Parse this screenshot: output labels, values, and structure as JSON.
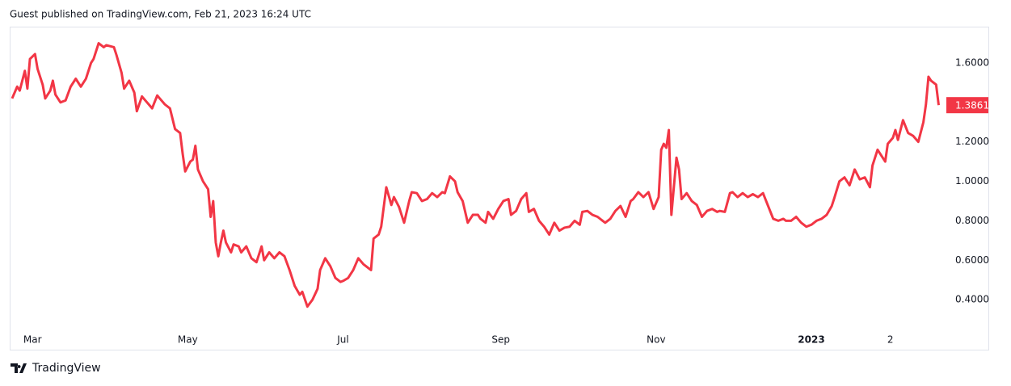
{
  "header": {
    "text": "Guest published on TradingView.com, Feb 21, 2023 16:24 UTC"
  },
  "footer": {
    "brand": "TradingView"
  },
  "chart_data": {
    "type": "line",
    "x": [
      0,
      2,
      3,
      5,
      6,
      7,
      9,
      10,
      12,
      13,
      15,
      16,
      17,
      19,
      21,
      23,
      25,
      27,
      29,
      31,
      32,
      34,
      36,
      37,
      40,
      41,
      43,
      44,
      46,
      48,
      49,
      51,
      53,
      55,
      57,
      58,
      60,
      62,
      64,
      66,
      67,
      68,
      70,
      71,
      72,
      73,
      75,
      77,
      78,
      79,
      80,
      81,
      82,
      83,
      84,
      86,
      87,
      89,
      90,
      92,
      94,
      96,
      98,
      99,
      101,
      103,
      105,
      107,
      109,
      111,
      113,
      114,
      116,
      118,
      120,
      121,
      123,
      125,
      127,
      129,
      130,
      132,
      134,
      136,
      138,
      141,
      142,
      144,
      145,
      147,
      149,
      150,
      152,
      154,
      156,
      157,
      159,
      161,
      163,
      165,
      167,
      169,
      170,
      172,
      174,
      175,
      177,
      179,
      181,
      183,
      184,
      186,
      187,
      189,
      191,
      193,
      195,
      196,
      198,
      200,
      202,
      203,
      205,
      207,
      209,
      211,
      213,
      215,
      217,
      219,
      221,
      223,
      224,
      226,
      228,
      230,
      232,
      233,
      235,
      237,
      239,
      241,
      243,
      244,
      246,
      248,
      250,
      252,
      254,
      255,
      256,
      257,
      258,
      259,
      261,
      262,
      263,
      265,
      267,
      269,
      271,
      273,
      275,
      277,
      278,
      280,
      282,
      283,
      285,
      287,
      289,
      291,
      293,
      295,
      297,
      299,
      301,
      303,
      304,
      306,
      308,
      310,
      312,
      314,
      316,
      318,
      320,
      322,
      323,
      325,
      327,
      329,
      331,
      333,
      335,
      337,
      338,
      340,
      341,
      343,
      344,
      346,
      347,
      348,
      350,
      352,
      354,
      356,
      358,
      359,
      360,
      361,
      363,
      364
    ],
    "series": [
      {
        "color": "#f23645",
        "values": [
          1.42,
          1.48,
          1.46,
          1.56,
          1.47,
          1.62,
          1.645,
          1.57,
          1.49,
          1.42,
          1.46,
          1.51,
          1.44,
          1.4,
          1.41,
          1.48,
          1.52,
          1.48,
          1.52,
          1.6,
          1.62,
          1.7,
          1.68,
          1.69,
          1.68,
          1.64,
          1.55,
          1.47,
          1.51,
          1.45,
          1.355,
          1.43,
          1.4,
          1.37,
          1.435,
          1.42,
          1.39,
          1.37,
          1.265,
          1.245,
          1.14,
          1.05,
          1.1,
          1.11,
          1.18,
          1.06,
          1.0,
          0.96,
          0.82,
          0.9,
          0.69,
          0.62,
          0.69,
          0.75,
          0.69,
          0.64,
          0.68,
          0.67,
          0.64,
          0.67,
          0.61,
          0.59,
          0.67,
          0.6,
          0.64,
          0.61,
          0.64,
          0.62,
          0.55,
          0.47,
          0.425,
          0.44,
          0.365,
          0.4,
          0.455,
          0.55,
          0.61,
          0.57,
          0.51,
          0.49,
          0.495,
          0.51,
          0.55,
          0.61,
          0.58,
          0.55,
          0.71,
          0.73,
          0.77,
          0.97,
          0.88,
          0.92,
          0.87,
          0.79,
          0.9,
          0.945,
          0.94,
          0.9,
          0.91,
          0.94,
          0.92,
          0.945,
          0.94,
          1.025,
          1.0,
          0.945,
          0.9,
          0.79,
          0.83,
          0.83,
          0.81,
          0.79,
          0.845,
          0.81,
          0.86,
          0.9,
          0.91,
          0.83,
          0.85,
          0.91,
          0.94,
          0.845,
          0.86,
          0.8,
          0.77,
          0.73,
          0.79,
          0.75,
          0.765,
          0.77,
          0.8,
          0.78,
          0.845,
          0.85,
          0.83,
          0.82,
          0.8,
          0.79,
          0.81,
          0.85,
          0.875,
          0.82,
          0.9,
          0.91,
          0.945,
          0.92,
          0.945,
          0.86,
          0.92,
          1.16,
          1.19,
          1.17,
          1.26,
          0.83,
          1.12,
          1.06,
          0.91,
          0.94,
          0.9,
          0.88,
          0.82,
          0.85,
          0.86,
          0.845,
          0.85,
          0.845,
          0.94,
          0.945,
          0.92,
          0.94,
          0.92,
          0.935,
          0.92,
          0.94,
          0.875,
          0.81,
          0.8,
          0.81,
          0.8,
          0.8,
          0.82,
          0.79,
          0.77,
          0.78,
          0.8,
          0.81,
          0.83,
          0.875,
          0.915,
          1.0,
          1.02,
          0.98,
          1.06,
          1.01,
          1.02,
          0.97,
          1.08,
          1.16,
          1.14,
          1.1,
          1.19,
          1.22,
          1.26,
          1.21,
          1.31,
          1.245,
          1.23,
          1.2,
          1.3,
          1.39,
          1.53,
          1.51,
          1.49,
          1.3861
        ]
      }
    ],
    "price_label": {
      "value": 1.3861,
      "label": "1.3861"
    },
    "xlim": [
      -0.95,
      366.7
    ],
    "xticks": [
      {
        "value": 8,
        "label": "Mar"
      },
      {
        "value": 69,
        "label": "May"
      },
      {
        "value": 130,
        "label": "Jul"
      },
      {
        "value": 192,
        "label": "Sep"
      },
      {
        "value": 253,
        "label": "Nov"
      },
      {
        "value": 314,
        "label": "2023",
        "bold": true
      },
      {
        "value": 345,
        "label": "2"
      }
    ],
    "ylim": [
      0.249,
      1.784
    ],
    "yticks": [
      {
        "value": 0.4,
        "label": "0.4000"
      },
      {
        "value": 0.6,
        "label": "0.6000"
      },
      {
        "value": 0.8,
        "label": "0.8000"
      },
      {
        "value": 1.0,
        "label": "1.0000"
      },
      {
        "value": 1.2,
        "label": "1.2000"
      },
      {
        "value": 1.6,
        "label": "1.6000"
      }
    ],
    "grid": false
  }
}
